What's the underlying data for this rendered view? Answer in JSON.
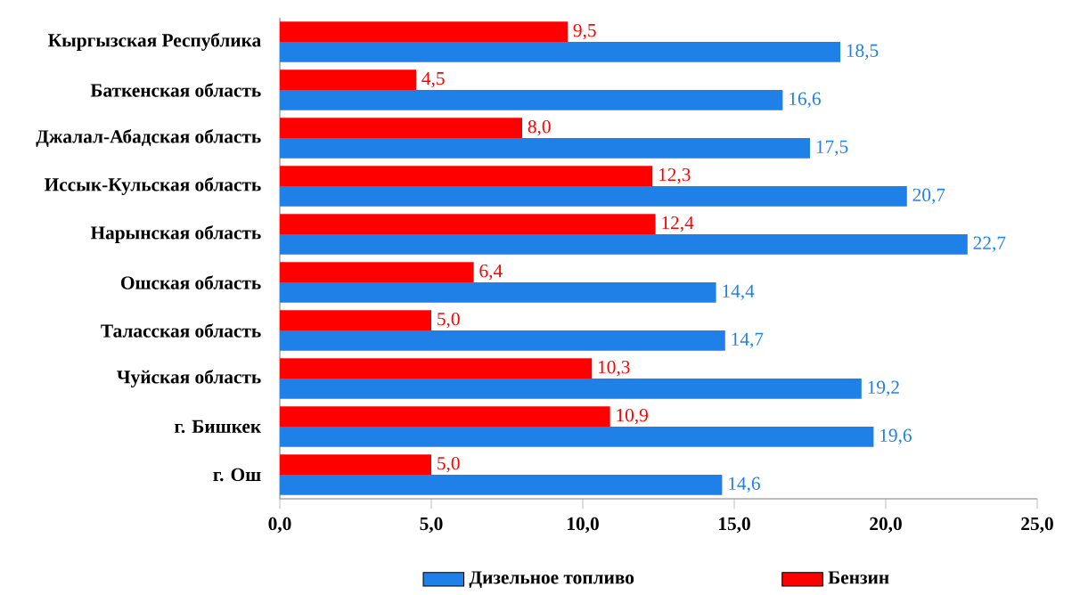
{
  "chart_data": {
    "type": "bar",
    "orientation": "horizontal",
    "categories": [
      "Кыргызская Республика",
      "Баткенская область",
      "Джалал-Абадская  область",
      "Иссык-Кульская  область",
      "Нарынская область",
      "Ошская область",
      "Таласская область",
      "Чуйская область",
      "г. Бишкек",
      "г. Ош"
    ],
    "series": [
      {
        "name": "Дизельное топливо",
        "color": "#1f80e8",
        "values": [
          18.5,
          16.6,
          17.5,
          20.7,
          22.7,
          14.4,
          14.7,
          19.2,
          19.6,
          14.6
        ],
        "value_labels": [
          "18,5",
          "16,6",
          "17,5",
          "20,7",
          "22,7",
          "14,4",
          "14,7",
          "19,2",
          "19,6",
          "14,6"
        ]
      },
      {
        "name": "Бензин",
        "color": "#ff0000",
        "values": [
          9.5,
          4.5,
          8.0,
          12.3,
          12.4,
          6.4,
          5.0,
          10.3,
          10.9,
          5.0
        ],
        "value_labels": [
          "9,5",
          "4,5",
          "8,0",
          "12,3",
          "12,4",
          "6,4",
          "5,0",
          "10,3",
          "10,9",
          "5,0"
        ]
      }
    ],
    "xlim": [
      0,
      25
    ],
    "xticks": [
      {
        "value": 0,
        "label": "0,0"
      },
      {
        "value": 5,
        "label": "5,0"
      },
      {
        "value": 10,
        "label": "10,0"
      },
      {
        "value": 15,
        "label": "15,0"
      },
      {
        "value": 20,
        "label": "20,0"
      },
      {
        "value": 25,
        "label": "25,0"
      }
    ],
    "legend": "bottom"
  }
}
